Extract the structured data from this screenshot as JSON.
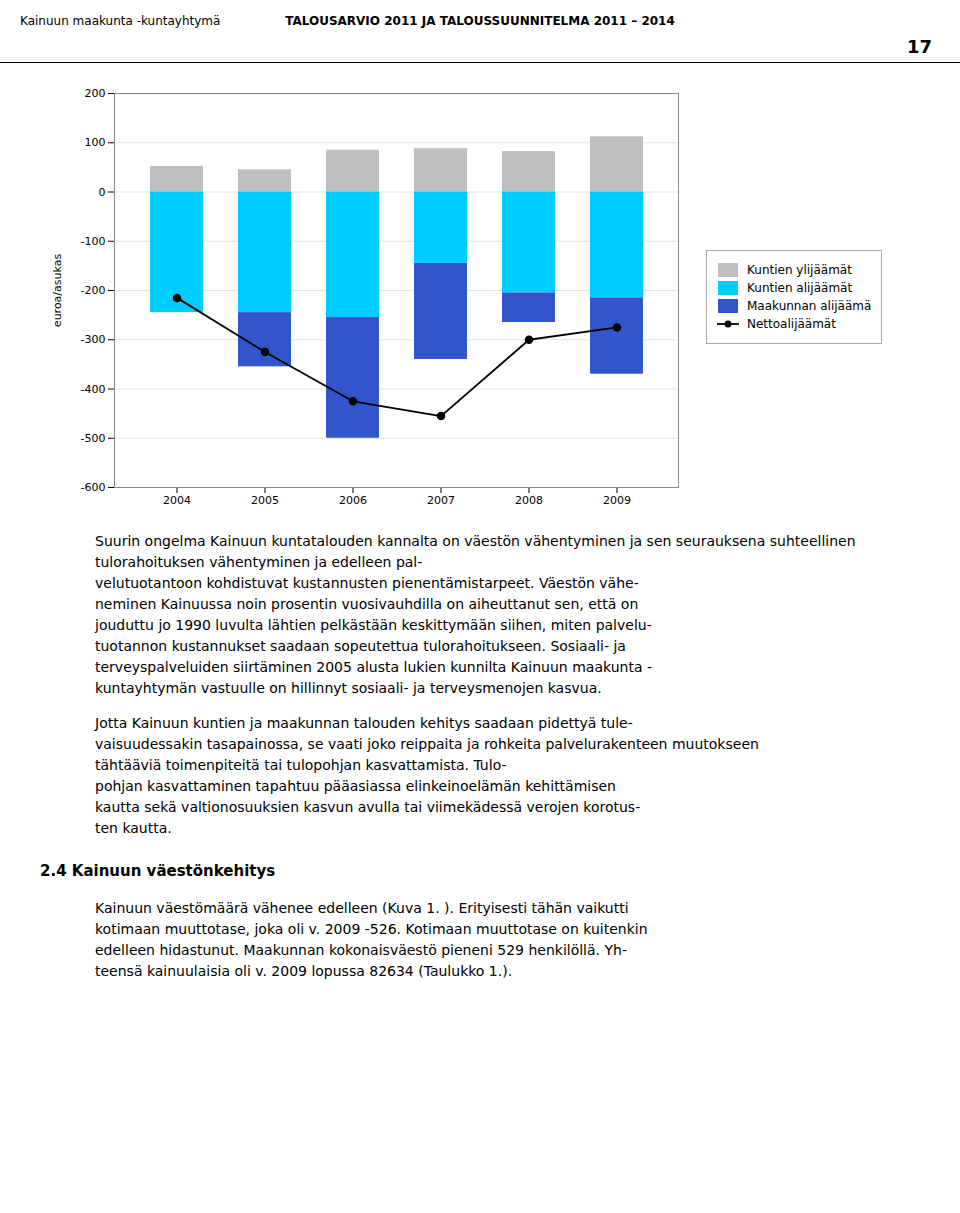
{
  "chart_data": {
    "type": "bar",
    "stacked": true,
    "categories": [
      "2004",
      "2005",
      "2006",
      "2007",
      "2008",
      "2009"
    ],
    "series": [
      {
        "name": "Kuntien ylijäämät",
        "type": "bar",
        "color": "#bfbfbf",
        "values": [
          52,
          45,
          85,
          88,
          82,
          112
        ]
      },
      {
        "name": "Kuntien alijäämät",
        "type": "bar",
        "color": "#00ccff",
        "values": [
          -245,
          -245,
          -255,
          -145,
          -205,
          -215
        ]
      },
      {
        "name": "Maakunnan alijäämä",
        "type": "bar",
        "color": "#3355cc",
        "values": [
          0,
          -110,
          -245,
          -195,
          -60,
          -155
        ]
      },
      {
        "name": "Nettoalijäämät",
        "type": "line",
        "color": "#000000",
        "marker": "circle",
        "values": [
          -215,
          -325,
          -425,
          -455,
          -300,
          -275
        ]
      }
    ],
    "ylabel": "euroa/asukas",
    "ylim": [
      -600,
      200
    ],
    "yticks": [
      -600,
      -500,
      -400,
      -300,
      -200,
      -100,
      0,
      100,
      200
    ],
    "grid": true,
    "legend": "right",
    "annotations": [
      "Kainuun maakunta -kuntayhtymä",
      "TALOUSARVIO 2011 JA TALOUSSUUNNITELMA 2011 – 2014",
      "17",
      "Suurin ongelma Kainuun kuntatalouden kannalta on väestön vähentyminen ja sen seurauksena suhteellinen tulorahoituksen vähentyminen ja edelleen pal-\nvelutuotantoon kohdistuvat kustannusten pienentämistarpeet. Väestön vähe-\nneminen Kainuussa noin prosentin vuosivauhdilla on aiheuttanut sen, että on\njouduttu jo 1990 luvulta lähtien pelkästään keskittymään siihen, miten palvelu-\ntuotannon kustannukset saadaan sopeutettua tulorahoitukseen. Sosiaali- ja\nterveyspalveluiden siirtäminen 2005 alusta lukien kunnilta Kainuun maakunta -\nkuntayhtymän vastuulle on hillinnyt sosiaali- ja terveysmenojen kasvua.",
      "Jotta Kainuun kuntien ja maakunnan talouden kehitys saadaan pidettyä tule-\nvaisuudessakin tasapainossa, se vaati joko reippaita ja rohkeita palvelurakenteen muutokseen\ntähtääviä toimenpiteitä tai tulopohjan kasvattamista. Tulo-\npohjan kasvattaminen tapahtuu pääasiassa elinkeinoelämän kehittämisen\nkautta sekä valtionosuuksien kasvun avulla tai viimekädessä verojen korotus-\nten kautta.",
      "2.4 Kainuun väestönkehitys",
      "Kainuun väestömäärä vähenee edelleen (Kuva 1. ). Erityisesti tähän vaikutti\nkotimaan muuttotase, joka oli v. 2009 -526. Kotimaan muuttotase on kuitenkin\nedelleen hidastunut. Maakunnan kokonaisväestö pieneni 529 henkilöllä. Yh-\nteensä kainuulaisia oli v. 2009 lopussa 82634 (Taulukko 1.)."
    ]
  }
}
